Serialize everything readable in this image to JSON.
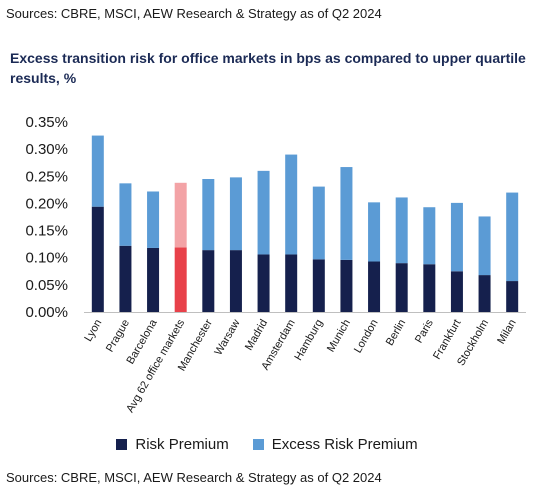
{
  "source_top": "Sources: CBRE, MSCI, AEW Research & Strategy as of Q2 2024",
  "source_bottom": "Sources: CBRE, MSCI, AEW Research & Strategy as of Q2 2024",
  "colors": {
    "risk": "#15204d",
    "excess": "#5b9bd5",
    "avg_risk": "#e8414a",
    "avg_excess": "#f3a3a6"
  },
  "chart_data": {
    "type": "bar",
    "stacked": true,
    "title": "Excess transition risk for office markets in bps as compared to upper quartile results, %",
    "categories": [
      "Lyon",
      "Prague",
      "Barcelona",
      "Avg 62 office markets",
      "Manchester",
      "Warsaw",
      "Madrid",
      "Amsterdam",
      "Hamburg",
      "Munich",
      "London",
      "Berlin",
      "Paris",
      "Frankfurt",
      "Stockholm",
      "Milan"
    ],
    "highlight_category": "Avg 62 office markets",
    "series": [
      {
        "name": "Risk Premium",
        "values": [
          0.194,
          0.122,
          0.118,
          0.119,
          0.114,
          0.114,
          0.106,
          0.106,
          0.097,
          0.096,
          0.093,
          0.09,
          0.088,
          0.075,
          0.068,
          0.057
        ]
      },
      {
        "name": "Excess Risk Premium",
        "values": [
          0.131,
          0.115,
          0.104,
          0.119,
          0.131,
          0.134,
          0.154,
          0.184,
          0.134,
          0.171,
          0.109,
          0.121,
          0.105,
          0.126,
          0.108,
          0.163
        ]
      }
    ],
    "yticks": [
      "0.00%",
      "0.05%",
      "0.10%",
      "0.15%",
      "0.20%",
      "0.25%",
      "0.30%",
      "0.35%"
    ],
    "ylim": [
      0,
      0.35
    ],
    "legend_position": "bottom",
    "grid": false
  }
}
